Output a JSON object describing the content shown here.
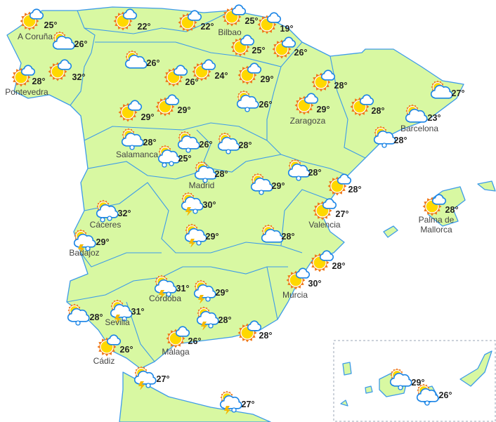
{
  "colors": {
    "land": "#d8f8a2",
    "border": "#3d9be9",
    "sea": "#ffffff",
    "sun_rays": "#f07818",
    "sun": "#ffd800",
    "cloud_stroke": "#1a84e6",
    "lightning": "#f5b800"
  },
  "locations": [
    {
      "label": "A Coruña",
      "temp": "25°",
      "icon": "sun-cloud"
    },
    {
      "label": "",
      "temp": "26°",
      "icon": "cloud-sun"
    },
    {
      "label": "Pontevedra",
      "temp": "28°",
      "icon": "sun-cloud"
    },
    {
      "label": "",
      "temp": "32°",
      "icon": "sun-cloud"
    },
    {
      "label": "",
      "temp": "22°",
      "icon": "sun-cloud"
    },
    {
      "label": "",
      "temp": "22°",
      "icon": "sun-cloud"
    },
    {
      "label": "Bilbao",
      "temp": "25°",
      "icon": "sun-cloud"
    },
    {
      "label": "",
      "temp": "19°",
      "icon": "sun-cloud"
    },
    {
      "label": "",
      "temp": "25°",
      "icon": "sun-cloud"
    },
    {
      "label": "",
      "temp": "26°",
      "icon": "sun-cloud"
    },
    {
      "label": "",
      "temp": "26°",
      "icon": "cloud-sun"
    },
    {
      "label": "",
      "temp": "26°",
      "icon": "sun-cloud"
    },
    {
      "label": "",
      "temp": "24°",
      "icon": "sun-cloud"
    },
    {
      "label": "",
      "temp": "29°",
      "icon": "sun-cloud"
    },
    {
      "label": "",
      "temp": "26°",
      "icon": "rain"
    },
    {
      "label": "",
      "temp": "28°",
      "icon": "sun-cloud"
    },
    {
      "label": "",
      "temp": "29°",
      "icon": "sun-cloud"
    },
    {
      "label": "",
      "temp": "29°",
      "icon": "sun-cloud"
    },
    {
      "label": "Zaragoza",
      "temp": "29°",
      "icon": "sun-cloud"
    },
    {
      "label": "",
      "temp": "28°",
      "icon": "sun-cloud"
    },
    {
      "label": "",
      "temp": "27°",
      "icon": "cloud-sun"
    },
    {
      "label": "Barcelona",
      "temp": "23°",
      "icon": "cloud-sun"
    },
    {
      "label": "",
      "temp": "28°",
      "icon": "rain"
    },
    {
      "label": "Salamanca",
      "temp": "28°",
      "icon": "rain"
    },
    {
      "label": "",
      "temp": "25°",
      "icon": "showers"
    },
    {
      "label": "",
      "temp": "26°",
      "icon": "rain"
    },
    {
      "label": "",
      "temp": "28°",
      "icon": "rain"
    },
    {
      "label": "Madrid",
      "temp": "28°",
      "icon": "rain"
    },
    {
      "label": "",
      "temp": "28°",
      "icon": "rain"
    },
    {
      "label": "",
      "temp": "29°",
      "icon": "rain"
    },
    {
      "label": "",
      "temp": "28°",
      "icon": "sun-cloud"
    },
    {
      "label": "Cáceres",
      "temp": "32°",
      "icon": "showers"
    },
    {
      "label": "",
      "temp": "30°",
      "icon": "storm"
    },
    {
      "label": "Valencia",
      "temp": "27°",
      "icon": "sun-cloud"
    },
    {
      "label": "Palma de Mallorca",
      "temp": "28°",
      "icon": "sun-cloud"
    },
    {
      "label": "Badajoz",
      "temp": "29°",
      "icon": "storm"
    },
    {
      "label": "",
      "temp": "29°",
      "icon": "storm"
    },
    {
      "label": "",
      "temp": "28°",
      "icon": "cloud-sun"
    },
    {
      "label": "",
      "temp": "28°",
      "icon": "sun-cloud"
    },
    {
      "label": "Murcia",
      "temp": "30°",
      "icon": "sun-cloud"
    },
    {
      "label": "Córdoba",
      "temp": "31°",
      "icon": "storm"
    },
    {
      "label": "",
      "temp": "29°",
      "icon": "storm"
    },
    {
      "label": "",
      "temp": "28°",
      "icon": "rain"
    },
    {
      "label": "Sevilla",
      "temp": "31°",
      "icon": "storm"
    },
    {
      "label": "",
      "temp": "28°",
      "icon": "storm"
    },
    {
      "label": "",
      "temp": "28°",
      "icon": "sun-cloud"
    },
    {
      "label": "Málaga",
      "temp": "26°",
      "icon": "sun-cloud"
    },
    {
      "label": "Cádiz",
      "temp": "26°",
      "icon": "sun-cloud"
    },
    {
      "label": "",
      "temp": "27°",
      "icon": "storm"
    },
    {
      "label": "",
      "temp": "29°",
      "icon": "rain"
    },
    {
      "label": "",
      "temp": "26°",
      "icon": "rain"
    },
    {
      "label": "",
      "temp": "27°",
      "icon": "storm"
    }
  ]
}
